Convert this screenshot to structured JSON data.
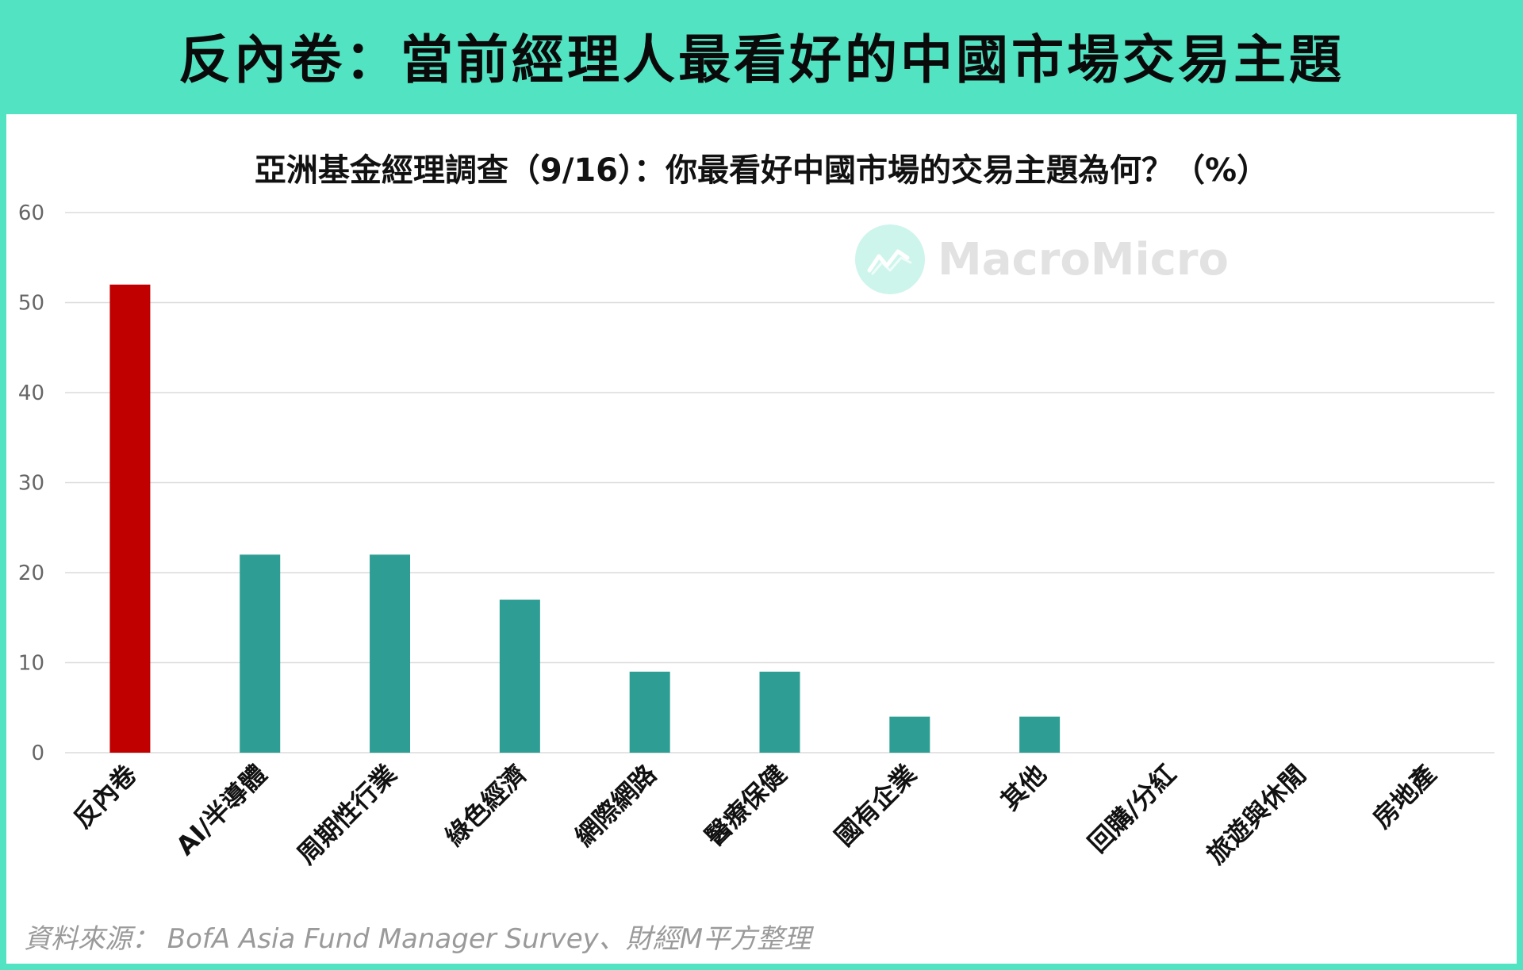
{
  "header": {
    "title": "反內卷：當前經理人最看好的中國市場交易主題"
  },
  "watermark": {
    "text": "MacroMicro",
    "icon": "macromicro-logo-icon"
  },
  "source": "資料來源： BofA Asia Fund Manager Survey、財經M平方整理",
  "colors": {
    "background": "#52e3c2",
    "highlight_bar": "#c00000",
    "bar": "#2e9e94",
    "grid": "#dcdcdc"
  },
  "chart_data": {
    "type": "bar",
    "title": "亞洲基金經理調查（9/16）：你最看好中國市場的交易主題為何？（%）",
    "xlabel": "",
    "ylabel": "",
    "ylim": [
      0,
      60
    ],
    "yticks": [
      0,
      10,
      20,
      30,
      40,
      50,
      60
    ],
    "grid": true,
    "categories": [
      "反內卷",
      "AI/半導體",
      "周期性行業",
      "綠色經濟",
      "網際網路",
      "醫療保健",
      "國有企業",
      "其他",
      "回購/分紅",
      "旅遊與休閒",
      "房地產"
    ],
    "values": [
      52,
      22,
      22,
      17,
      9,
      9,
      4,
      4,
      0,
      0,
      0
    ],
    "highlight_index": 0
  }
}
